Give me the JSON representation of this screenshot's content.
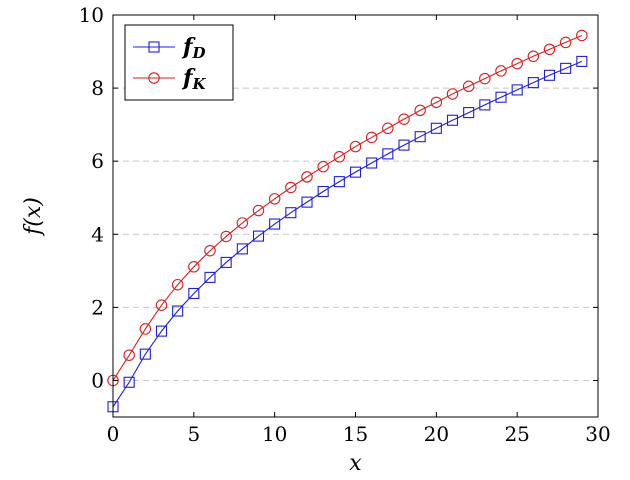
{
  "chart_data": {
    "type": "line",
    "xlabel": "x",
    "ylabel": "f(x)",
    "xlim": [
      0,
      30
    ],
    "ylim": [
      -1,
      10
    ],
    "x_ticks": [
      0,
      5,
      10,
      15,
      20,
      25,
      30
    ],
    "y_ticks": [
      0,
      2,
      4,
      6,
      8,
      10
    ],
    "grid": "horizontal-dashed",
    "legend_position": "top-left",
    "x": [
      0,
      1,
      2,
      3,
      4,
      5,
      6,
      7,
      8,
      9,
      10,
      11,
      12,
      13,
      14,
      15,
      16,
      17,
      18,
      19,
      20,
      21,
      22,
      23,
      24,
      25,
      26,
      27,
      28,
      29
    ],
    "series": [
      {
        "name": "f_D",
        "legend_main": "f",
        "legend_sub": "D",
        "color": "#1f1fd9",
        "marker": "square",
        "values": [
          -0.72,
          -0.05,
          0.72,
          1.35,
          1.9,
          2.38,
          2.82,
          3.23,
          3.6,
          3.95,
          4.28,
          4.59,
          4.88,
          5.17,
          5.44,
          5.7,
          5.95,
          6.2,
          6.44,
          6.67,
          6.9,
          7.12,
          7.33,
          7.54,
          7.75,
          7.95,
          8.15,
          8.35,
          8.54,
          8.73
        ]
      },
      {
        "name": "f_K",
        "legend_main": "f",
        "legend_sub": "K",
        "color": "#d91f1f",
        "marker": "circle",
        "values": [
          0.0,
          0.69,
          1.41,
          2.06,
          2.62,
          3.11,
          3.55,
          3.94,
          4.31,
          4.65,
          4.97,
          5.28,
          5.57,
          5.85,
          6.12,
          6.4,
          6.65,
          6.9,
          7.15,
          7.39,
          7.61,
          7.84,
          8.05,
          8.26,
          8.47,
          8.67,
          8.87,
          9.06,
          9.25,
          9.44
        ]
      }
    ]
  }
}
